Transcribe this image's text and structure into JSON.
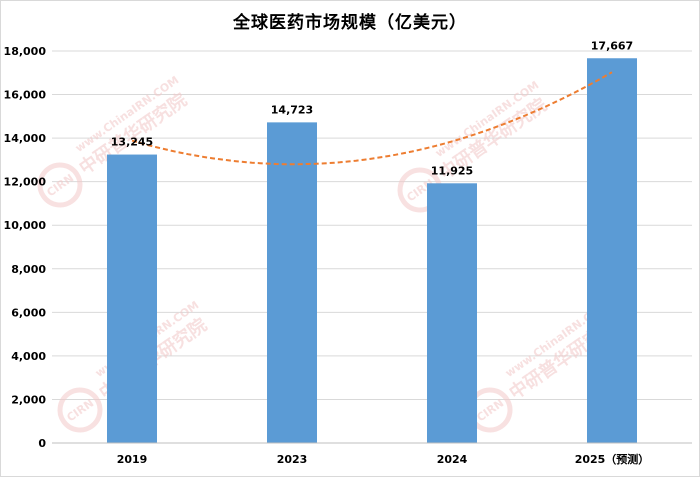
{
  "chart_data": {
    "type": "bar",
    "title": "全球医药市场规模（亿美元）",
    "categories": [
      "2019",
      "2023",
      "2024",
      "2025（预测）"
    ],
    "values": [
      13245,
      14723,
      11925,
      17667
    ],
    "value_labels": [
      "13,245",
      "14,723",
      "11,925",
      "17,667"
    ],
    "ylim": [
      0,
      18000
    ],
    "yticks": [
      0,
      2000,
      4000,
      6000,
      8000,
      10000,
      12000,
      14000,
      16000,
      18000
    ],
    "ytick_labels": [
      "0",
      "2,000",
      "4,000",
      "6,000",
      "8,000",
      "10,000",
      "12,000",
      "14,000",
      "16,000",
      "18,000"
    ],
    "trendline": {
      "type": "polynomial",
      "style": "dashed",
      "color": "#ed7d31"
    },
    "bar_color": "#5b9bd5",
    "grid": true,
    "xlabel": "",
    "ylabel": ""
  },
  "watermark": {
    "brand": "中研普华研究院",
    "logo": "CIRN",
    "url": "www.ChinaIRN.COM"
  }
}
